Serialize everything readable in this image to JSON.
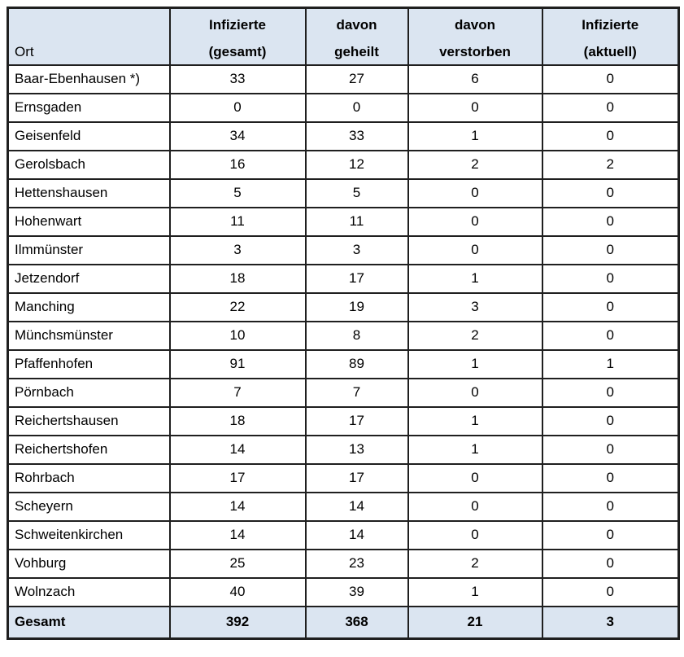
{
  "table": {
    "header": {
      "ort_label": "Ort",
      "columns": [
        {
          "line1": "Infizierte",
          "line2": "(gesamt)"
        },
        {
          "line1": "davon",
          "line2": "geheilt"
        },
        {
          "line1": "davon",
          "line2": "verstorben"
        },
        {
          "line1": "Infizierte",
          "line2": "(aktuell)"
        }
      ]
    },
    "rows": [
      {
        "ort": "Baar-Ebenhausen *)",
        "infizierte_gesamt": 33,
        "davon_geheilt": 27,
        "davon_verstorben": 6,
        "infizierte_aktuell": 0
      },
      {
        "ort": "Ernsgaden",
        "infizierte_gesamt": 0,
        "davon_geheilt": 0,
        "davon_verstorben": 0,
        "infizierte_aktuell": 0
      },
      {
        "ort": "Geisenfeld",
        "infizierte_gesamt": 34,
        "davon_geheilt": 33,
        "davon_verstorben": 1,
        "infizierte_aktuell": 0
      },
      {
        "ort": "Gerolsbach",
        "infizierte_gesamt": 16,
        "davon_geheilt": 12,
        "davon_verstorben": 2,
        "infizierte_aktuell": 2
      },
      {
        "ort": "Hettenshausen",
        "infizierte_gesamt": 5,
        "davon_geheilt": 5,
        "davon_verstorben": 0,
        "infizierte_aktuell": 0
      },
      {
        "ort": "Hohenwart",
        "infizierte_gesamt": 11,
        "davon_geheilt": 11,
        "davon_verstorben": 0,
        "infizierte_aktuell": 0
      },
      {
        "ort": "Ilmmünster",
        "infizierte_gesamt": 3,
        "davon_geheilt": 3,
        "davon_verstorben": 0,
        "infizierte_aktuell": 0
      },
      {
        "ort": "Jetzendorf",
        "infizierte_gesamt": 18,
        "davon_geheilt": 17,
        "davon_verstorben": 1,
        "infizierte_aktuell": 0
      },
      {
        "ort": "Manching",
        "infizierte_gesamt": 22,
        "davon_geheilt": 19,
        "davon_verstorben": 3,
        "infizierte_aktuell": 0
      },
      {
        "ort": "Münchsmünster",
        "infizierte_gesamt": 10,
        "davon_geheilt": 8,
        "davon_verstorben": 2,
        "infizierte_aktuell": 0
      },
      {
        "ort": "Pfaffenhofen",
        "infizierte_gesamt": 91,
        "davon_geheilt": 89,
        "davon_verstorben": 1,
        "infizierte_aktuell": 1
      },
      {
        "ort": "Pörnbach",
        "infizierte_gesamt": 7,
        "davon_geheilt": 7,
        "davon_verstorben": 0,
        "infizierte_aktuell": 0
      },
      {
        "ort": "Reichertshausen",
        "infizierte_gesamt": 18,
        "davon_geheilt": 17,
        "davon_verstorben": 1,
        "infizierte_aktuell": 0
      },
      {
        "ort": "Reichertshofen",
        "infizierte_gesamt": 14,
        "davon_geheilt": 13,
        "davon_verstorben": 1,
        "infizierte_aktuell": 0
      },
      {
        "ort": "Rohrbach",
        "infizierte_gesamt": 17,
        "davon_geheilt": 17,
        "davon_verstorben": 0,
        "infizierte_aktuell": 0
      },
      {
        "ort": "Scheyern",
        "infizierte_gesamt": 14,
        "davon_geheilt": 14,
        "davon_verstorben": 0,
        "infizierte_aktuell": 0
      },
      {
        "ort": "Schweitenkirchen",
        "infizierte_gesamt": 14,
        "davon_geheilt": 14,
        "davon_verstorben": 0,
        "infizierte_aktuell": 0
      },
      {
        "ort": "Vohburg",
        "infizierte_gesamt": 25,
        "davon_geheilt": 23,
        "davon_verstorben": 2,
        "infizierte_aktuell": 0
      },
      {
        "ort": "Wolnzach",
        "infizierte_gesamt": 40,
        "davon_geheilt": 39,
        "davon_verstorben": 1,
        "infizierte_aktuell": 0
      }
    ],
    "total_row": {
      "ort": "Gesamt",
      "infizierte_gesamt": 392,
      "davon_geheilt": 368,
      "davon_verstorben": 21,
      "infizierte_aktuell": 3
    }
  },
  "colors": {
    "header_bg": "#dbe5f1",
    "total_bg": "#dbe5f1",
    "border_heavy": "#1f1f1f",
    "border_light": "#555555",
    "text": "#000000",
    "page_bg": "#ffffff"
  }
}
